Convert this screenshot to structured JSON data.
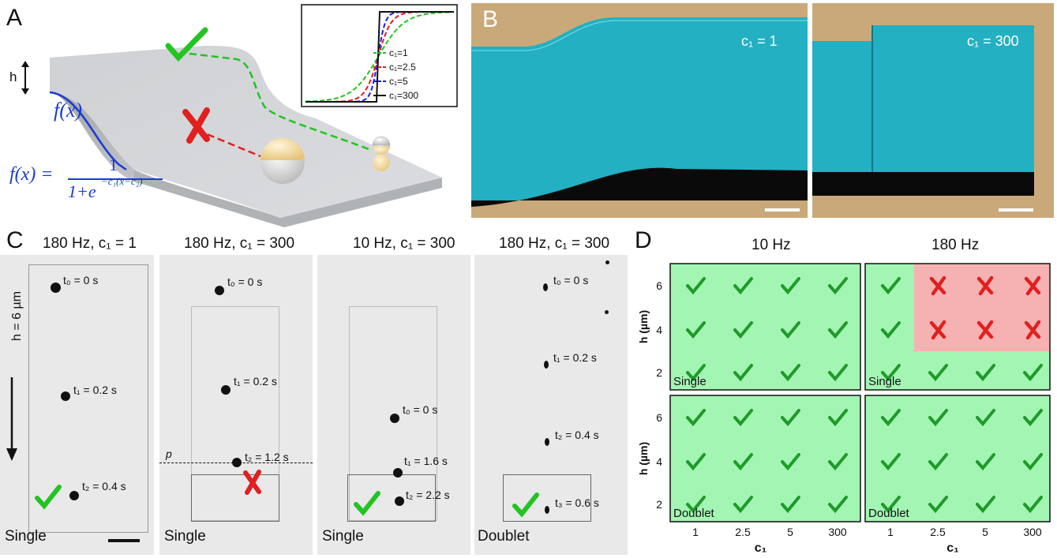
{
  "panel_labels": {
    "a": "A",
    "b": "B",
    "c": "C",
    "d": "D"
  },
  "panel_a": {
    "h_label": "h",
    "f_label": "f(x)",
    "formula_lhs": "f(x) =",
    "formula_num": "1",
    "formula_den": "1+e",
    "formula_exp": "−c₁(x−c₂)",
    "inset_legend": [
      "c₁=1",
      "c₁=2.5",
      "c₁=5",
      "c₁=300"
    ],
    "inset_colors": [
      "#22c422",
      "#e02020",
      "#1a1aee",
      "#111111"
    ]
  },
  "panel_b": {
    "left_label": "c₁ = 1",
    "right_label": "c₁ = 300",
    "cyan": "#22b3c4"
  },
  "panel_c": {
    "columns": [
      {
        "title": "180 Hz, c₁ = 1",
        "bottom": "Single",
        "times": [
          "t₀ = 0 s",
          "t₁ = 0.2 s",
          "t₂ = 0.4 s"
        ],
        "result": "check"
      },
      {
        "title": "180 Hz, c₁ = 300",
        "bottom": "Single",
        "times": [
          "t₀ = 0 s",
          "t₁ = 0.2 s",
          "t₂ = 1.2 s"
        ],
        "result": "cross",
        "p_label": "p"
      },
      {
        "title": "10 Hz, c₁ = 300",
        "bottom": "Single",
        "times": [
          "t₀ = 0 s",
          "t₁ = 1.6 s",
          "t₂ = 2.2 s"
        ],
        "result": "check"
      },
      {
        "title": "180 Hz, c₁ = 300",
        "bottom": "Doublet",
        "times": [
          "t₀ = 0 s",
          "t₁ = 0.2 s",
          "t₂ = 0.4 s",
          "t₃ = 0.6 s"
        ],
        "result": "check"
      }
    ],
    "h_label": "h = 6 µm"
  },
  "panel_d": {
    "col_titles": [
      "10 Hz",
      "180 Hz"
    ],
    "row_labels": [
      "Single",
      "Doublet"
    ],
    "ylabel": "h (µm)",
    "xlabel": "c₁",
    "x_ticks": [
      "1",
      "2.5",
      "5",
      "300"
    ],
    "y_ticks": [
      "6",
      "4",
      "2"
    ],
    "green": "#a3f5b3",
    "red": "#f6b2b2",
    "grids": [
      [
        [
          "c",
          "c",
          "c",
          "c"
        ],
        [
          "c",
          "c",
          "c",
          "c"
        ],
        [
          "c",
          "c",
          "c",
          "c"
        ]
      ],
      [
        [
          "c",
          "x",
          "x",
          "x"
        ],
        [
          "c",
          "x",
          "x",
          "x"
        ],
        [
          "c",
          "c",
          "c",
          "c"
        ]
      ],
      [
        [
          "c",
          "c",
          "c",
          "c"
        ],
        [
          "c",
          "c",
          "c",
          "c"
        ],
        [
          "c",
          "c",
          "c",
          "c"
        ]
      ],
      [
        [
          "c",
          "c",
          "c",
          "c"
        ],
        [
          "c",
          "c",
          "c",
          "c"
        ],
        [
          "c",
          "c",
          "c",
          "c"
        ]
      ]
    ]
  }
}
